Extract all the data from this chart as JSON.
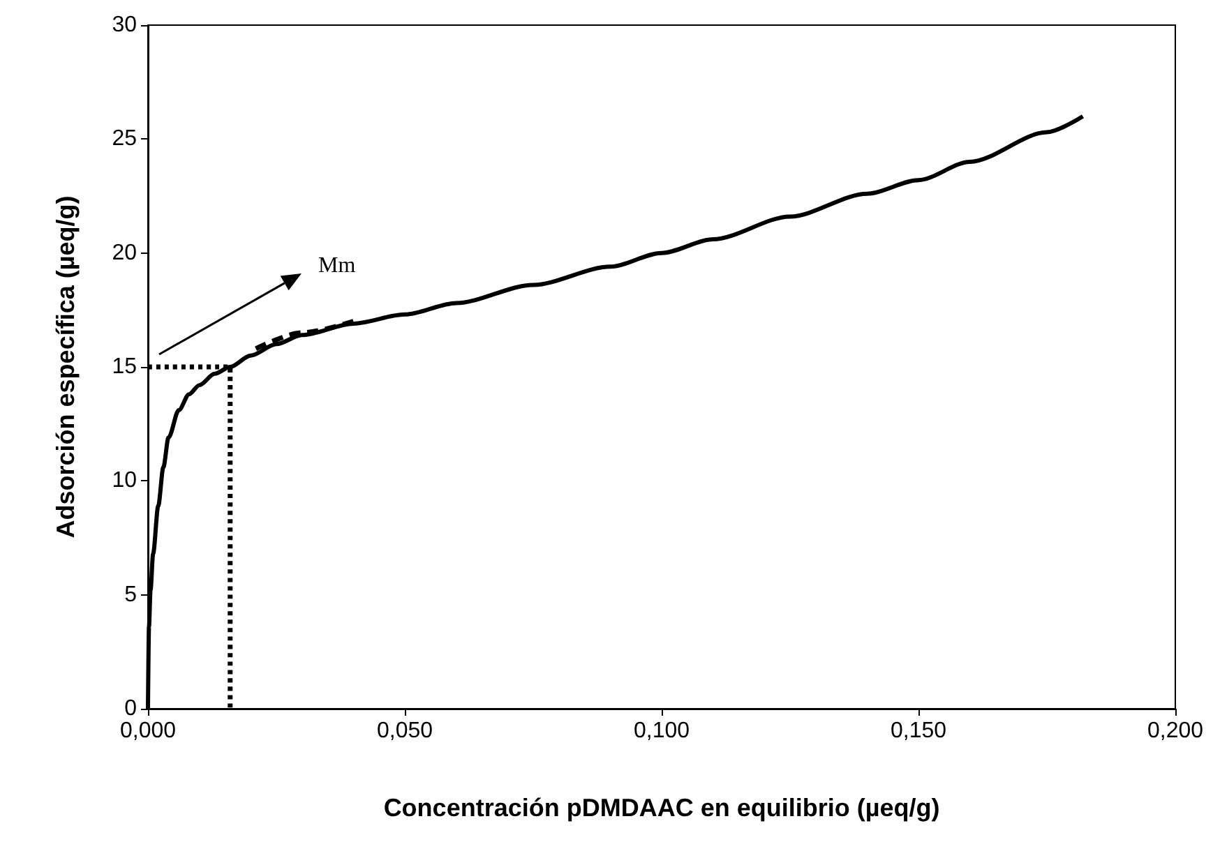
{
  "chart_data": {
    "type": "line",
    "xlabel": "Concentración pDMDAAC en equilibrio (µeq/g)",
    "ylabel": "Adsorción específica (µeq/g)",
    "xlim": [
      0,
      0.2
    ],
    "xticks": [
      {
        "value": 0,
        "label": "0,000"
      },
      {
        "value": 0.05,
        "label": "0,050"
      },
      {
        "value": 0.1,
        "label": "0,100"
      },
      {
        "value": 0.15,
        "label": "0,150"
      },
      {
        "value": 0.2,
        "label": "0,200"
      }
    ],
    "ylim": [
      0,
      30
    ],
    "yticks": [
      0,
      5,
      10,
      15,
      20,
      25,
      30
    ],
    "grid": false,
    "marker": "none",
    "series": [
      {
        "color": "#000000",
        "line_style": "solid",
        "x": [
          0,
          0.0002,
          0.0005,
          0.001,
          0.002,
          0.003,
          0.004,
          0.006,
          0.008,
          0.01,
          0.013,
          0.016,
          0.02,
          0.025,
          0.03,
          0.04,
          0.05,
          0.06,
          0.075,
          0.09,
          0.1,
          0.11,
          0.125,
          0.14,
          0.15,
          0.16,
          0.175,
          0.182
        ],
        "values": [
          0,
          3.6,
          5.2,
          6.8,
          8.9,
          10.6,
          11.9,
          13.1,
          13.8,
          14.2,
          14.7,
          15.0,
          15.5,
          16.0,
          16.4,
          16.9,
          17.3,
          17.8,
          18.6,
          19.4,
          20.0,
          20.6,
          21.6,
          22.6,
          23.2,
          24.0,
          25.3,
          26.0
        ]
      },
      {
        "color": "#000000",
        "line_style": "dashed",
        "x": [
          0.021,
          0.03,
          0.04
        ],
        "values": [
          15.8,
          16.5,
          17.0
        ]
      },
      {
        "color": "#000000",
        "line_style": "dotted",
        "x": [
          0,
          0.016,
          0.016
        ],
        "values": [
          15,
          15,
          0
        ]
      }
    ],
    "annotations": [
      "Mm"
    ]
  }
}
